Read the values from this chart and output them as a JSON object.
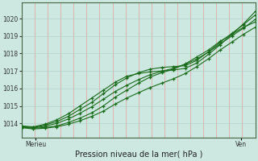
{
  "title": "Pression niveau de la mer( hPa )",
  "xlabel_left": "Merieu",
  "xlabel_right": "Ven",
  "ylim": [
    1013.2,
    1020.9
  ],
  "yticks": [
    1014,
    1015,
    1016,
    1017,
    1018,
    1019,
    1020
  ],
  "xlim": [
    0,
    1
  ],
  "background_color": "#cce8e0",
  "grid_color_v": "#ee8888",
  "grid_color_h": "#aacccc",
  "line_color": "#1a6b1a",
  "n_vgrid": 18,
  "lines_x": [
    0.0,
    0.05,
    0.1,
    0.15,
    0.2,
    0.25,
    0.3,
    0.35,
    0.4,
    0.45,
    0.5,
    0.55,
    0.6,
    0.65,
    0.7,
    0.75,
    0.8,
    0.85,
    0.9,
    0.95,
    1.0
  ],
  "line1_y": [
    1013.78,
    1013.72,
    1013.76,
    1013.85,
    1014.05,
    1014.3,
    1014.6,
    1015.0,
    1015.5,
    1015.9,
    1016.3,
    1016.65,
    1016.9,
    1017.1,
    1017.4,
    1017.8,
    1018.2,
    1018.7,
    1019.1,
    1019.5,
    1019.8
  ],
  "line2_y": [
    1013.82,
    1013.76,
    1013.9,
    1014.1,
    1014.4,
    1014.8,
    1015.2,
    1015.7,
    1016.2,
    1016.6,
    1016.9,
    1017.1,
    1017.2,
    1017.25,
    1017.3,
    1017.6,
    1018.1,
    1018.65,
    1019.15,
    1019.65,
    1020.2
  ],
  "line3_y": [
    1013.85,
    1013.8,
    1013.95,
    1014.2,
    1014.55,
    1015.0,
    1015.45,
    1015.9,
    1016.35,
    1016.7,
    1016.85,
    1016.95,
    1017.0,
    1017.05,
    1017.15,
    1017.45,
    1017.95,
    1018.5,
    1019.1,
    1019.7,
    1020.4
  ],
  "line4_y": [
    1013.75,
    1013.68,
    1013.72,
    1013.8,
    1013.95,
    1014.15,
    1014.4,
    1014.7,
    1015.1,
    1015.45,
    1015.75,
    1016.05,
    1016.3,
    1016.55,
    1016.85,
    1017.25,
    1017.7,
    1018.2,
    1018.65,
    1019.1,
    1019.5
  ],
  "line5_y": [
    1013.8,
    1013.74,
    1013.83,
    1014.0,
    1014.25,
    1014.58,
    1014.95,
    1015.38,
    1015.82,
    1016.18,
    1016.5,
    1016.78,
    1016.98,
    1017.15,
    1017.38,
    1017.68,
    1018.08,
    1018.55,
    1019.0,
    1019.45,
    1019.95
  ]
}
